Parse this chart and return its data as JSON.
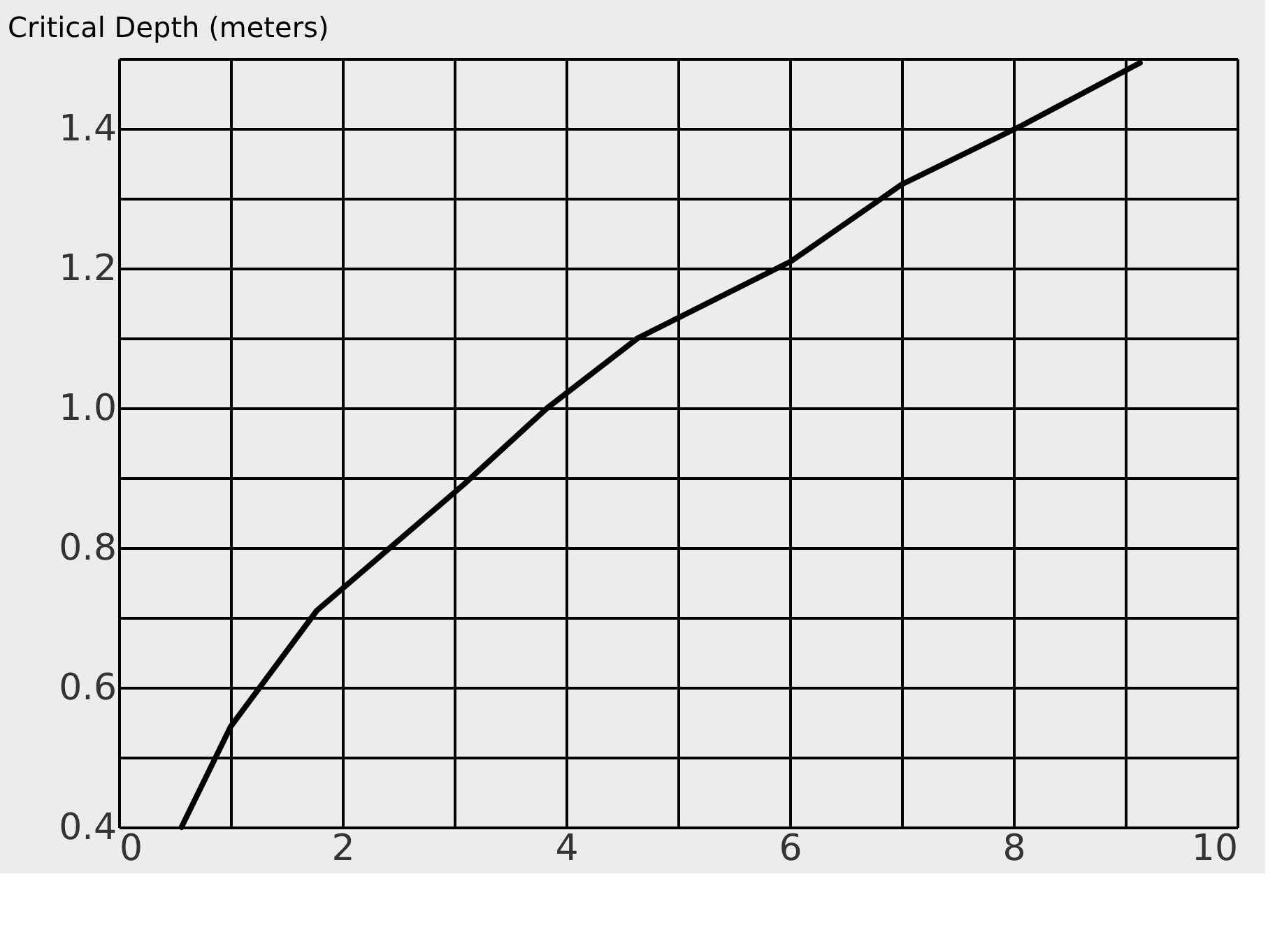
{
  "chart_data": {
    "type": "line",
    "ylabel": "Critical Depth (meters)",
    "x": [
      0.56,
      1.0,
      1.77,
      3.08,
      3.83,
      4.64,
      6.01,
      7.0,
      8.07,
      9.13
    ],
    "series": [
      {
        "color": "#000000",
        "values": [
          0.4,
          0.544,
          0.71,
          0.89,
          1.0,
          1.1,
          1.21,
          1.32,
          1.404,
          1.494
        ]
      }
    ],
    "xlim": [
      0,
      10
    ],
    "ylim": [
      0.4,
      1.5
    ],
    "xticks": [
      0,
      {
        "value": 1,
        "label": null
      },
      2,
      {
        "value": 3,
        "label": null
      },
      4,
      {
        "value": 5,
        "label": null
      },
      6,
      {
        "value": 7,
        "label": null
      },
      8,
      {
        "value": 9,
        "label": null
      },
      10
    ],
    "yticks": [
      0.4,
      {
        "value": 0.5,
        "label": null
      },
      0.6,
      {
        "value": 0.7,
        "label": null
      },
      0.8,
      {
        "value": 0.9,
        "label": null
      },
      {
        "value": 1.0,
        "label": "1.0"
      },
      {
        "value": 1.1,
        "label": null
      },
      1.2,
      {
        "value": 1.3,
        "label": null
      },
      1.4,
      {
        "value": 1.5,
        "label": null
      }
    ],
    "grid": true,
    "marker": "none",
    "line_style": "solid"
  }
}
